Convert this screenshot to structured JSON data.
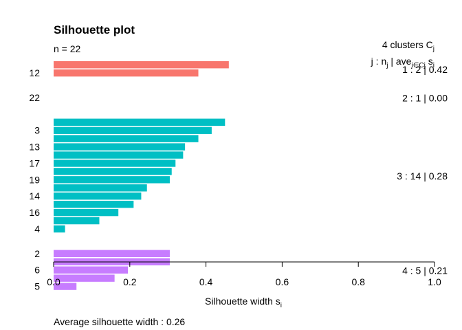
{
  "chart_data": {
    "type": "bar",
    "orientation": "horizontal",
    "title": "Silhouette plot",
    "subtitle": "n = 22",
    "xlabel": "Silhouette width s",
    "xlabel_subscript": "i",
    "xlim": [
      0,
      1
    ],
    "x_ticks": [
      "0.0",
      "0.2",
      "0.4",
      "0.6",
      "0.8",
      "1.0"
    ],
    "legend_header": {
      "line1": "4  clusters  C",
      "line1_sub": "j",
      "line2": "j :  n",
      "line2_sub1": "j",
      "line2_mid": " | ave",
      "line2_sub2": "i∈Cj",
      "line2_end": " s",
      "line2_sub3": "i"
    },
    "footer": "Average silhouette width :  0.26",
    "clusters": [
      {
        "id": 1,
        "color": "#F8766D",
        "summary": "1 :   2  |  0.42",
        "values": [
          0.46,
          0.38
        ]
      },
      {
        "id": 2,
        "color": "#F8766D",
        "summary": "2 :   1  |  0.00",
        "values": [
          0.0
        ]
      },
      {
        "id": 3,
        "color": "#00BFC4",
        "summary": "3 :   14  |  0.28",
        "values": [
          0.45,
          0.415,
          0.38,
          0.345,
          0.34,
          0.32,
          0.31,
          0.305,
          0.245,
          0.23,
          0.21,
          0.17,
          0.12,
          0.03
        ]
      },
      {
        "id": 4,
        "color": "#C77CFF",
        "summary": "4 :   5  |  0.21",
        "values": [
          0.305,
          0.305,
          0.195,
          0.16,
          0.06
        ]
      }
    ],
    "bar_labels": [
      {
        "text": "12",
        "cluster": 1,
        "index": 1
      },
      {
        "text": "22",
        "cluster": 2,
        "index": 0
      },
      {
        "text": "3",
        "cluster": 3,
        "index": 1
      },
      {
        "text": "13",
        "cluster": 3,
        "index": 3
      },
      {
        "text": "17",
        "cluster": 3,
        "index": 5
      },
      {
        "text": "19",
        "cluster": 3,
        "index": 7
      },
      {
        "text": "14",
        "cluster": 3,
        "index": 9
      },
      {
        "text": "16",
        "cluster": 3,
        "index": 11
      },
      {
        "text": "4",
        "cluster": 3,
        "index": 13
      },
      {
        "text": "2",
        "cluster": 4,
        "index": 0
      },
      {
        "text": "6",
        "cluster": 4,
        "index": 2
      },
      {
        "text": "5",
        "cluster": 4,
        "index": 4
      }
    ]
  }
}
